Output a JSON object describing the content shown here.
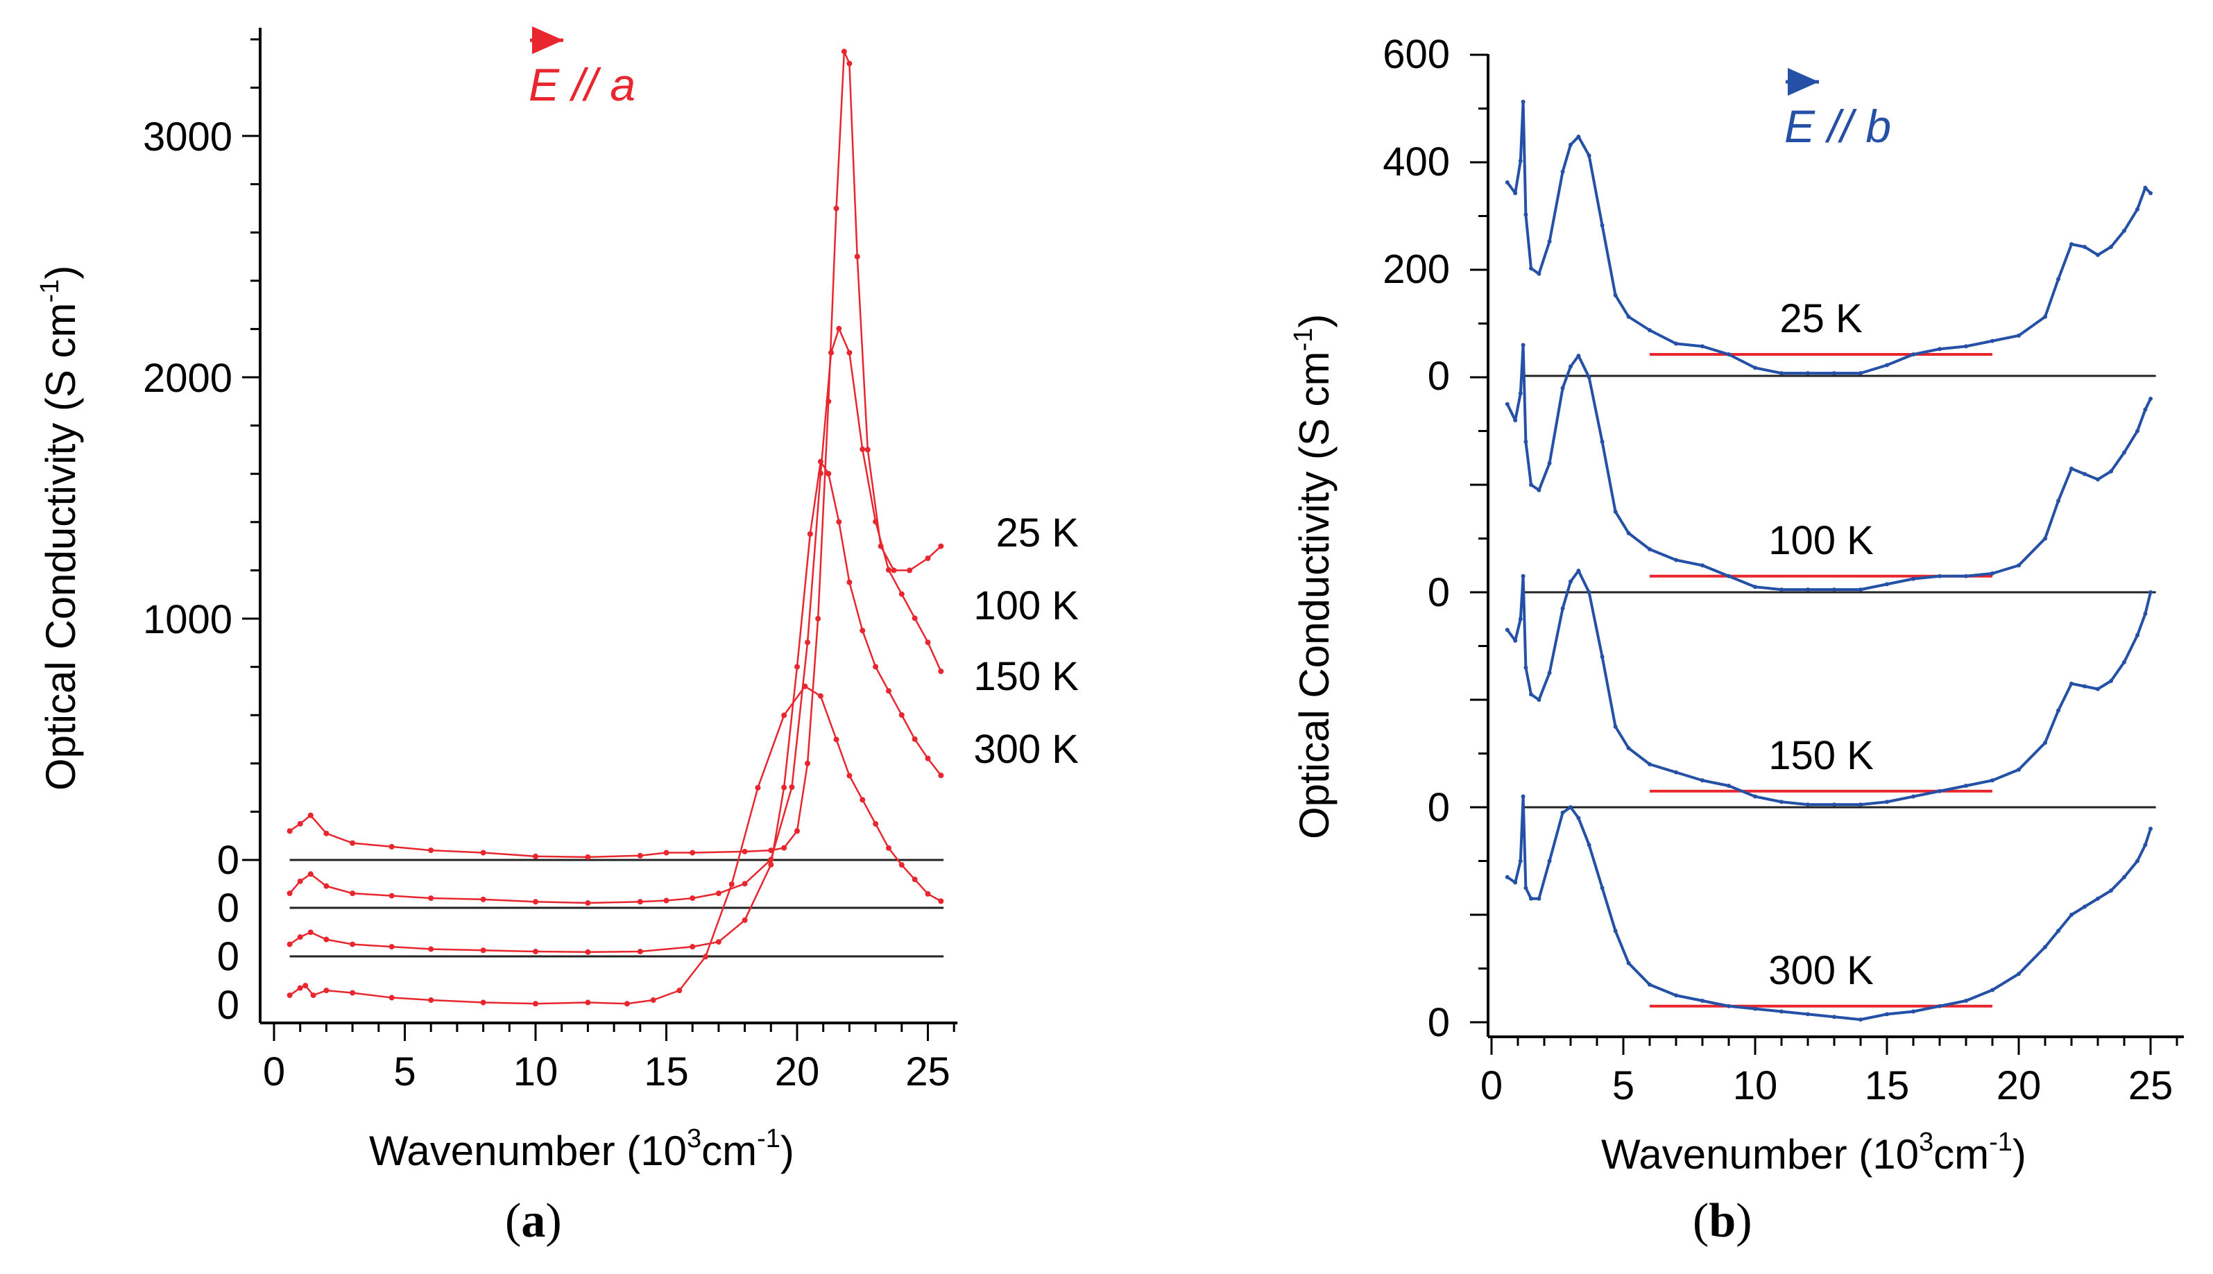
{
  "chart_data": [
    {
      "type": "line",
      "panel_label": "a",
      "title": "E // a",
      "polarization_vector": "E",
      "polarization_axis": "a",
      "xlabel": "Wavenumber (10³cm⁻¹)",
      "xlabel_main": "Wavenumber (10",
      "xlabel_exp1": "3",
      "xlabel_mid": "cm",
      "xlabel_exp2": "-1",
      "xlabel_end": ")",
      "ylabel_main": "Optical Conductivity (S cm",
      "ylabel_exp": "-1",
      "ylabel_end": ")",
      "xlim": [
        0,
        26
      ],
      "xticks": [
        "0",
        "5",
        "10",
        "15",
        "20",
        "25"
      ],
      "yticks_main": [
        "1000",
        "2000",
        "3000"
      ],
      "y_scale_ticks": [
        1000,
        2000,
        3000
      ],
      "offset_zero_label": "0",
      "color": "#e8262e",
      "series": [
        {
          "name": "25 K",
          "offset_rank": 3,
          "x": [
            0.6,
            1.0,
            1.4,
            2.0,
            3.0,
            4.5,
            6.0,
            8.0,
            10.0,
            12.0,
            14.0,
            15.0,
            16.0,
            18.0,
            19.0,
            19.5,
            20.0,
            20.4,
            20.8,
            21.2,
            21.5,
            21.8,
            22.0,
            22.3,
            22.7,
            23.2,
            23.7,
            24.3,
            25.0,
            25.5
          ],
          "values": [
            120,
            150,
            185,
            110,
            70,
            55,
            40,
            30,
            15,
            12,
            18,
            30,
            30,
            35,
            40,
            50,
            120,
            400,
            1000,
            1900,
            2700,
            3350,
            3300,
            2500,
            1700,
            1300,
            1200,
            1200,
            1250,
            1300
          ]
        },
        {
          "name": "100 K",
          "offset_rank": 2,
          "x": [
            0.6,
            1.0,
            1.4,
            2.0,
            3.0,
            4.5,
            6.0,
            8.0,
            10.0,
            12.0,
            14.0,
            15.0,
            16.0,
            17.0,
            18.0,
            19.0,
            19.8,
            20.4,
            20.9,
            21.3,
            21.6,
            22.0,
            22.5,
            23.0,
            23.5,
            24.0,
            24.5,
            25.0,
            25.5
          ],
          "values": [
            60,
            110,
            140,
            90,
            60,
            50,
            40,
            35,
            25,
            20,
            25,
            30,
            40,
            60,
            100,
            200,
            500,
            1100,
            1800,
            2300,
            2400,
            2300,
            1900,
            1600,
            1400,
            1300,
            1200,
            1100,
            980
          ]
        },
        {
          "name": "150 K",
          "offset_rank": 1,
          "x": [
            0.6,
            1.0,
            1.4,
            2.0,
            3.0,
            4.5,
            6.0,
            8.0,
            10.0,
            12.0,
            14.0,
            16.0,
            17.0,
            18.0,
            19.0,
            19.5,
            20.0,
            20.5,
            20.9,
            21.2,
            21.6,
            22.0,
            22.5,
            23.0,
            23.5,
            24.0,
            24.5,
            25.0,
            25.5
          ],
          "values": [
            50,
            80,
            100,
            70,
            50,
            40,
            30,
            25,
            20,
            18,
            20,
            40,
            60,
            150,
            380,
            700,
            1200,
            1750,
            2050,
            2000,
            1800,
            1550,
            1350,
            1200,
            1100,
            1000,
            900,
            820,
            750
          ]
        },
        {
          "name": "300 K",
          "offset_rank": 0,
          "x": [
            0.6,
            1.0,
            1.2,
            1.5,
            2.0,
            3.0,
            4.5,
            6.0,
            8.0,
            10.0,
            12.0,
            13.5,
            14.5,
            15.5,
            16.5,
            17.5,
            18.5,
            19.5,
            20.3,
            20.9,
            21.5,
            22.0,
            22.5,
            23.0,
            23.5,
            24.0,
            24.5,
            25.0,
            25.5
          ],
          "values": [
            40,
            70,
            80,
            40,
            60,
            50,
            30,
            20,
            10,
            5,
            10,
            5,
            20,
            60,
            200,
            500,
            900,
            1200,
            1320,
            1280,
            1100,
            950,
            850,
            750,
            650,
            580,
            520,
            460,
            430
          ]
        }
      ],
      "series_offsets": [
        0,
        200,
        400,
        600
      ]
    },
    {
      "type": "line",
      "panel_label": "b",
      "title": "E // b",
      "polarization_vector": "E",
      "polarization_axis": "b",
      "xlabel": "Wavenumber (10³cm⁻¹)",
      "xlabel_main": "Wavenumber (10",
      "xlabel_exp1": "3",
      "xlabel_mid": "cm",
      "xlabel_exp2": "-1",
      "xlabel_end": ")",
      "ylabel_main": "Optical Conductivity (S cm",
      "ylabel_exp": "-1",
      "ylabel_end": ")",
      "xlim": [
        0,
        26
      ],
      "xticks": [
        "0",
        "5",
        "10",
        "15",
        "20",
        "25"
      ],
      "yticks_top": [
        "200",
        "400",
        "600"
      ],
      "y_scale_ticks": [
        200,
        400,
        600
      ],
      "offset_zero_label": "0",
      "color": "#2451a6",
      "guide_color": "#e8262e",
      "guide_x_range": [
        6,
        19
      ],
      "series": [
        {
          "name": "25 K",
          "offset_rank": 3,
          "guide_level": 40,
          "x": [
            0.6,
            0.9,
            1.1,
            1.2,
            1.3,
            1.5,
            1.8,
            2.2,
            2.7,
            3.0,
            3.3,
            3.7,
            4.2,
            4.7,
            5.2,
            6.0,
            7.0,
            8.0,
            9.0,
            10.0,
            11.0,
            12.0,
            13.0,
            14.0,
            15.0,
            16.0,
            17.0,
            18.0,
            19.0,
            20.0,
            21.0,
            21.5,
            22.0,
            22.5,
            23.0,
            23.5,
            24.0,
            24.5,
            24.8,
            25.0
          ],
          "values": [
            360,
            340,
            400,
            510,
            300,
            200,
            190,
            250,
            380,
            430,
            445,
            410,
            280,
            150,
            110,
            85,
            60,
            55,
            40,
            15,
            5,
            5,
            5,
            5,
            20,
            40,
            50,
            55,
            65,
            75,
            110,
            180,
            245,
            240,
            225,
            240,
            270,
            310,
            350,
            340
          ]
        },
        {
          "name": "100 K",
          "offset_rank": 2,
          "guide_level": 30,
          "x": [
            0.6,
            0.9,
            1.1,
            1.2,
            1.3,
            1.5,
            1.8,
            2.2,
            2.7,
            3.0,
            3.3,
            3.7,
            4.2,
            4.7,
            5.2,
            6.0,
            7.0,
            8.0,
            9.0,
            10.0,
            11.0,
            12.0,
            13.0,
            14.0,
            15.0,
            16.0,
            17.0,
            18.0,
            19.0,
            20.0,
            21.0,
            21.5,
            22.0,
            22.5,
            23.0,
            23.5,
            24.0,
            24.5,
            24.8,
            25.0
          ],
          "values": [
            350,
            320,
            370,
            460,
            280,
            200,
            190,
            240,
            380,
            420,
            440,
            400,
            280,
            150,
            110,
            80,
            60,
            50,
            30,
            10,
            5,
            5,
            5,
            5,
            15,
            25,
            30,
            30,
            35,
            50,
            100,
            170,
            230,
            220,
            210,
            225,
            260,
            300,
            340,
            360
          ]
        },
        {
          "name": "150 K",
          "offset_rank": 1,
          "guide_level": 30,
          "x": [
            0.6,
            0.9,
            1.1,
            1.2,
            1.3,
            1.5,
            1.8,
            2.2,
            2.7,
            3.0,
            3.3,
            3.7,
            4.2,
            4.7,
            5.2,
            6.0,
            7.0,
            8.0,
            9.0,
            10.0,
            11.0,
            12.0,
            13.0,
            14.0,
            15.0,
            16.0,
            17.0,
            18.0,
            19.0,
            20.0,
            21.0,
            21.5,
            22.0,
            22.5,
            23.0,
            23.5,
            24.0,
            24.5,
            24.8,
            25.0
          ],
          "values": [
            330,
            310,
            350,
            430,
            260,
            210,
            200,
            250,
            370,
            420,
            440,
            400,
            280,
            150,
            110,
            80,
            65,
            50,
            40,
            20,
            10,
            5,
            5,
            5,
            10,
            20,
            30,
            40,
            50,
            70,
            120,
            180,
            230,
            225,
            220,
            235,
            270,
            320,
            360,
            400
          ]
        },
        {
          "name": "300 K",
          "offset_rank": 0,
          "guide_level": 30,
          "x": [
            0.6,
            0.9,
            1.1,
            1.2,
            1.3,
            1.5,
            1.8,
            2.2,
            2.7,
            3.0,
            3.3,
            3.7,
            4.2,
            4.7,
            5.2,
            6.0,
            7.0,
            8.0,
            9.0,
            10.0,
            11.0,
            12.0,
            13.0,
            14.0,
            15.0,
            16.0,
            17.0,
            18.0,
            19.0,
            20.0,
            21.0,
            21.5,
            22.0,
            22.5,
            23.0,
            23.5,
            24.0,
            24.5,
            24.8,
            25.0
          ],
          "values": [
            270,
            260,
            300,
            420,
            250,
            230,
            230,
            300,
            390,
            400,
            380,
            330,
            250,
            170,
            110,
            70,
            50,
            40,
            30,
            25,
            20,
            15,
            10,
            5,
            15,
            20,
            30,
            40,
            60,
            90,
            140,
            170,
            200,
            215,
            230,
            245,
            270,
            300,
            330,
            360
          ]
        }
      ]
    }
  ]
}
